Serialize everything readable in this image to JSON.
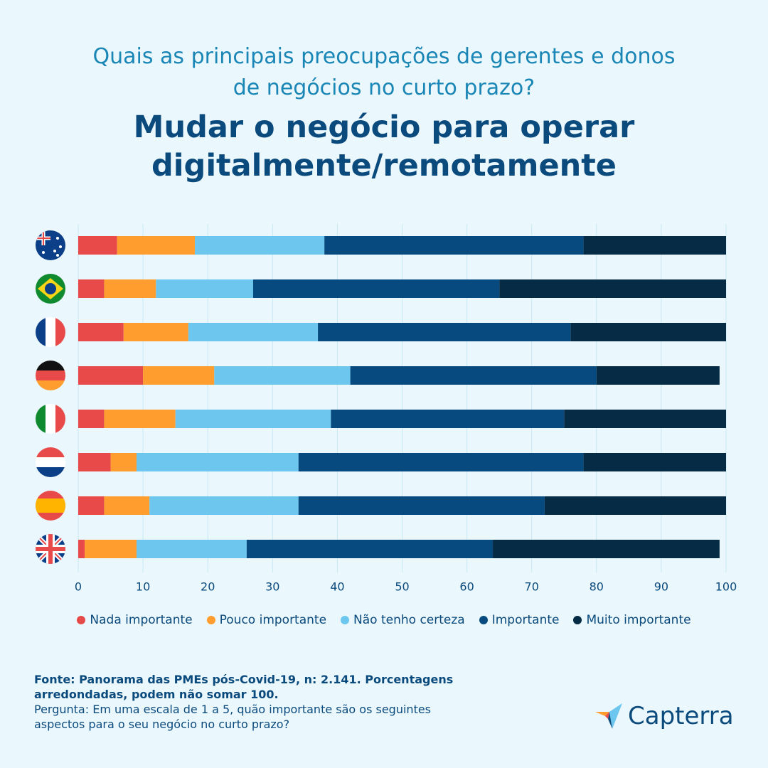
{
  "chart_data": {
    "type": "stacked-bar-horizontal",
    "title": "Quais as principais preocupações de gerentes e donos de negócios no curto prazo?",
    "subtitle": "Mudar o negócio para operar digitalmente/remotamente",
    "categories": [
      null,
      null,
      null,
      null,
      null,
      null,
      null,
      null
    ],
    "series": [
      {
        "name": "Nada importante",
        "color": "#e84a4a",
        "values": [
          6,
          4,
          7,
          10,
          4,
          5,
          4,
          1
        ]
      },
      {
        "name": "Pouco importante",
        "color": "#ff9d2e",
        "values": [
          12,
          8,
          10,
          11,
          11,
          4,
          7,
          8
        ]
      },
      {
        "name": "Não tenho certeza",
        "color": "#6cc6ee",
        "values": [
          20,
          15,
          20,
          21,
          24,
          25,
          23,
          17
        ]
      },
      {
        "name": "Importante",
        "color": "#064a80",
        "values": [
          40,
          38,
          39,
          38,
          36,
          44,
          38,
          38
        ]
      },
      {
        "name": "Muito importante",
        "color": "#062b45",
        "values": [
          22,
          35,
          24,
          19,
          25,
          22,
          28,
          35
        ]
      }
    ],
    "xlim": [
      0,
      100
    ],
    "xticks": [
      0,
      10,
      20,
      30,
      40,
      50,
      60,
      70,
      80,
      90,
      100
    ],
    "grid": true,
    "source": "Fonte: Panorama das PMEs pós-Covid-19, n: 2.141. Porcentagens arredondadas, podem não somar 100.",
    "note": "Pergunta: Em uma escala de 1 a 5, quão importante são os seguintes aspectos para o seu negócio no curto prazo?",
    "logo": "Capterra"
  }
}
